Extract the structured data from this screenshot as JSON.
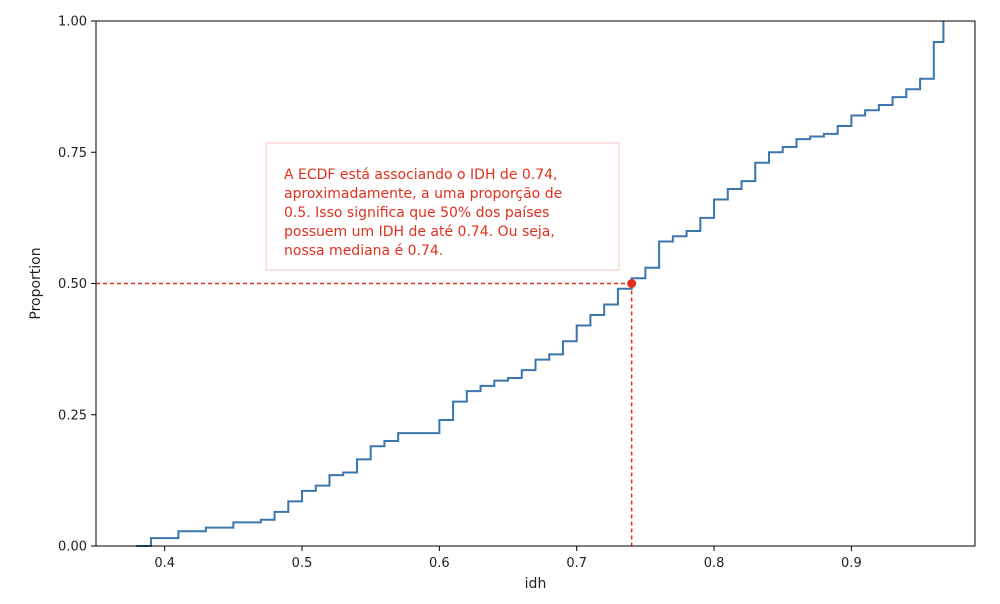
{
  "chart_data": {
    "type": "line",
    "chart_style": "ecdf-step",
    "xlabel": "idh",
    "ylabel": "Proportion",
    "xlim": [
      0.35,
      0.99
    ],
    "ylim": [
      0,
      1
    ],
    "x_ticks": [
      {
        "value": 0.4,
        "label": "0.4"
      },
      {
        "value": 0.5,
        "label": "0.5"
      },
      {
        "value": 0.6,
        "label": "0.6"
      },
      {
        "value": 0.7,
        "label": "0.7"
      },
      {
        "value": 0.8,
        "label": "0.8"
      },
      {
        "value": 0.9,
        "label": "0.9"
      }
    ],
    "y_ticks": [
      {
        "value": 0,
        "label": "0.00"
      },
      {
        "value": 0.25,
        "label": "0.25"
      },
      {
        "value": 0.5,
        "label": "0.50"
      },
      {
        "value": 0.75,
        "label": "0.75"
      },
      {
        "value": 1.0,
        "label": "1.00"
      }
    ],
    "grid": false,
    "series": [
      {
        "color": "#3a76ad",
        "x": [
          0.379,
          0.39,
          0.41,
          0.43,
          0.45,
          0.47,
          0.48,
          0.49,
          0.5,
          0.51,
          0.52,
          0.53,
          0.54,
          0.55,
          0.56,
          0.57,
          0.58,
          0.6,
          0.61,
          0.62,
          0.63,
          0.64,
          0.65,
          0.66,
          0.67,
          0.68,
          0.69,
          0.7,
          0.71,
          0.72,
          0.73,
          0.74,
          0.75,
          0.76,
          0.77,
          0.78,
          0.79,
          0.8,
          0.81,
          0.82,
          0.83,
          0.84,
          0.85,
          0.86,
          0.87,
          0.88,
          0.89,
          0.9,
          0.91,
          0.92,
          0.93,
          0.94,
          0.95,
          0.96,
          0.967
        ],
        "y": [
          0.0,
          0.015,
          0.028,
          0.035,
          0.045,
          0.05,
          0.065,
          0.085,
          0.105,
          0.115,
          0.135,
          0.14,
          0.165,
          0.19,
          0.2,
          0.215,
          0.215,
          0.24,
          0.275,
          0.295,
          0.305,
          0.315,
          0.32,
          0.335,
          0.355,
          0.365,
          0.39,
          0.42,
          0.44,
          0.46,
          0.49,
          0.51,
          0.53,
          0.58,
          0.59,
          0.6,
          0.625,
          0.66,
          0.68,
          0.695,
          0.73,
          0.75,
          0.76,
          0.775,
          0.78,
          0.785,
          0.8,
          0.82,
          0.83,
          0.84,
          0.855,
          0.87,
          0.89,
          0.96,
          1.0
        ]
      }
    ],
    "highlight_point": {
      "x": 0.74,
      "y": 0.5,
      "color": "#e0301e"
    },
    "reference_lines_color": "#e0301e",
    "annotation": {
      "text_lines": [
        "A ECDF está associando o IDH de 0.74,",
        "aproximadamente, a uma proporção de",
        "0.5. Isso significa que 50% dos países",
        "possuem um IDH de até 0.74. Ou seja,",
        "nossa mediana é 0.74."
      ],
      "text_color": "#e0301e",
      "border_color": "#f8c6c0"
    }
  }
}
